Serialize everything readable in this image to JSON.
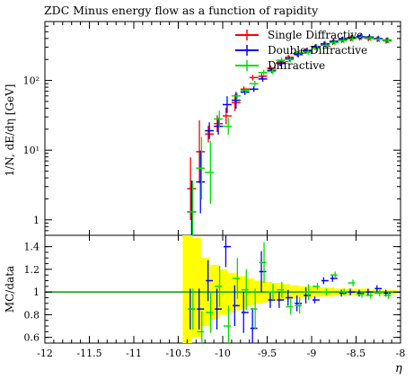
{
  "chart_data": [
    {
      "type": "line",
      "title": "ZDC Minus energy flow as a function of rapidity",
      "ylabel": "1/N, dE/dη [GeV]",
      "yscale": "log",
      "ylim": [
        0.6,
        700
      ],
      "xlim": [
        -12,
        -8
      ],
      "y_tick_labels": [
        "1",
        "10¹",
        "10²"
      ],
      "legend_position": "top-right",
      "grid": false,
      "series": [
        {
          "name": "Single Diffractive",
          "color": "#ff0000",
          "x": [
            -10.35,
            -10.25,
            -10.15,
            -10.05,
            -9.95,
            -9.85,
            -9.75,
            -9.65,
            -9.55,
            -9.45,
            -9.35,
            -9.25,
            -9.15,
            -9.05,
            -8.95,
            -8.85,
            -8.75,
            -8.65,
            -8.55,
            -8.45,
            -8.35,
            -8.25,
            -8.15
          ],
          "y": [
            2.8,
            9.5,
            17,
            24,
            31,
            48,
            75,
            110,
            115,
            150,
            180,
            215,
            240,
            265,
            300,
            330,
            355,
            380,
            400,
            410,
            400,
            390,
            370
          ]
        },
        {
          "name": "Double Diffractive",
          "color": "#0000ff",
          "x": [
            -10.35,
            -10.25,
            -10.15,
            -10.05,
            -9.95,
            -9.85,
            -9.75,
            -9.65,
            -9.55,
            -9.45,
            -9.35,
            -9.25,
            -9.15,
            -9.05,
            -8.95,
            -8.85,
            -8.75,
            -8.65,
            -8.55,
            -8.45,
            -8.35,
            -8.25,
            -8.15
          ],
          "y": [
            1.3,
            3.5,
            19,
            22,
            45,
            52,
            68,
            75,
            105,
            140,
            175,
            205,
            235,
            270,
            305,
            335,
            365,
            390,
            410,
            425,
            420,
            400,
            380
          ]
        },
        {
          "name": "Diffractive",
          "color": "#00e000",
          "x": [
            -10.35,
            -10.25,
            -10.15,
            -10.05,
            -9.95,
            -9.85,
            -9.75,
            -9.65,
            -9.55,
            -9.45,
            -9.35,
            -9.25,
            -9.15,
            -9.05,
            -8.95,
            -8.85,
            -8.75,
            -8.65,
            -8.55,
            -8.45,
            -8.35,
            -8.25,
            -8.15
          ],
          "y": [
            1.3,
            5.5,
            4.8,
            28,
            22,
            60,
            72,
            90,
            130,
            135,
            195,
            200,
            250,
            255,
            290,
            320,
            350,
            375,
            395,
            415,
            405,
            390,
            375
          ]
        }
      ]
    },
    {
      "type": "line",
      "ylabel": "MC/data",
      "xlabel": "η",
      "ylim": [
        0.55,
        1.5
      ],
      "xlim": [
        -12,
        -8
      ],
      "x_tick_labels": [
        "-12",
        "-11.5",
        "-11",
        "-10.5",
        "-10",
        "-9.5",
        "-9",
        "-8.5",
        "-8"
      ],
      "y_tick_labels": [
        "0.6",
        "0.8",
        "1",
        "1.2",
        "1.4"
      ],
      "reference_line": 1,
      "band": {
        "color": "#ffff00",
        "x": [
          -10.4,
          -10.3,
          -10.2,
          -10.1,
          -10.0,
          -9.9,
          -9.8,
          -9.7,
          -9.6,
          -9.5,
          -9.4,
          -9.3,
          -9.2,
          -9.1,
          -9.0,
          -8.9,
          -8.8,
          -8.7,
          -8.6,
          -8.5,
          -8.4,
          -8.3,
          -8.2,
          -8.1
        ],
        "low": [
          0.45,
          0.6,
          0.7,
          0.76,
          0.8,
          0.82,
          0.85,
          0.88,
          0.9,
          0.91,
          0.92,
          0.93,
          0.94,
          0.95,
          0.95,
          0.96,
          0.96,
          0.97,
          0.97,
          0.97,
          0.97,
          0.98,
          0.98,
          0.98
        ],
        "high": [
          1.5,
          1.48,
          1.3,
          1.24,
          1.2,
          1.17,
          1.14,
          1.12,
          1.1,
          1.09,
          1.08,
          1.07,
          1.06,
          1.05,
          1.05,
          1.04,
          1.04,
          1.03,
          1.03,
          1.03,
          1.03,
          1.02,
          1.02,
          1.02
        ]
      },
      "series": [
        {
          "name": "Double Diffractive",
          "color": "#0000ff",
          "x": [
            -10.35,
            -10.25,
            -10.15,
            -10.05,
            -9.95,
            -9.85,
            -9.75,
            -9.65,
            -9.55,
            -9.45,
            -9.35,
            -9.25,
            -9.15,
            -9.05,
            -8.95,
            -8.85,
            -8.75,
            -8.65,
            -8.55,
            -8.45,
            -8.35,
            -8.25,
            -8.15
          ],
          "y": [
            0.85,
            0.85,
            1.1,
            0.85,
            1.4,
            0.88,
            0.82,
            0.68,
            1.18,
            0.93,
            0.93,
            0.95,
            0.9,
            0.97,
            0.93,
            1.1,
            1.12,
            0.99,
            1.0,
            0.99,
            1.0,
            1.03,
            0.99
          ]
        },
        {
          "name": "Diffractive",
          "color": "#00e000",
          "x": [
            -10.35,
            -10.25,
            -10.15,
            -10.05,
            -9.95,
            -9.85,
            -9.75,
            -9.65,
            -9.55,
            -9.45,
            -9.35,
            -9.25,
            -9.15,
            -9.05,
            -8.95,
            -8.85,
            -8.75,
            -8.65,
            -8.55,
            -8.45,
            -8.35,
            -8.25,
            -8.15
          ],
          "y": [
            0.85,
            0.65,
            0.82,
            1.05,
            0.7,
            1.12,
            1.02,
            0.85,
            1.26,
            1.0,
            1.02,
            0.87,
            0.88,
            1.0,
            1.05,
            1.0,
            1.15,
            1.0,
            1.08,
            0.98,
            0.97,
            0.99,
            0.97
          ]
        }
      ]
    }
  ]
}
